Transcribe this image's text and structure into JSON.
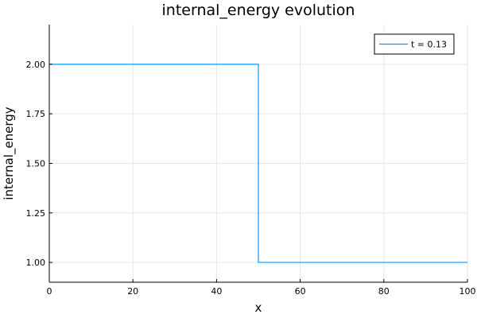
{
  "chart_data": {
    "type": "line",
    "title": "internal_energy evolution",
    "xlabel": "x",
    "ylabel": "internal_energy",
    "xlim": [
      0,
      100
    ],
    "ylim": [
      0.9,
      2.2
    ],
    "xticks": [
      0,
      20,
      40,
      60,
      80,
      100
    ],
    "xtick_labels": [
      "0",
      "20",
      "40",
      "60",
      "80",
      "100"
    ],
    "yticks": [
      1.0,
      1.25,
      1.5,
      1.75,
      2.0
    ],
    "ytick_labels": [
      "1.00",
      "1.25",
      "1.50",
      "1.75",
      "2.00"
    ],
    "grid": true,
    "legend_position": "top-right",
    "series": [
      {
        "name": "t = 0.13",
        "color": "#009AFA",
        "x": [
          0,
          50,
          50,
          100
        ],
        "y": [
          2.0,
          2.0,
          1.0,
          1.0
        ]
      }
    ]
  }
}
